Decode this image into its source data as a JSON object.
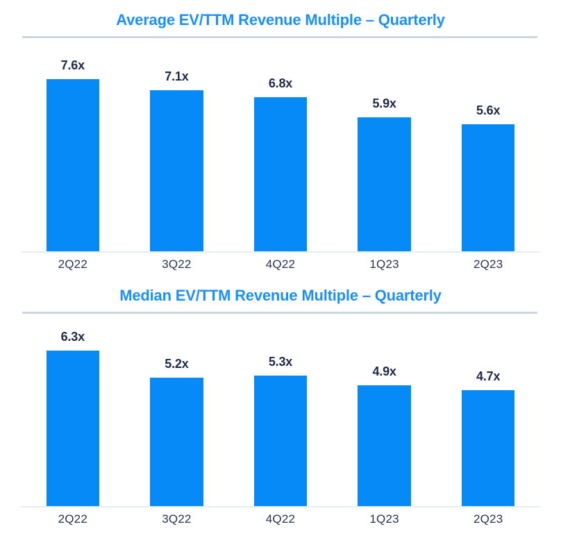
{
  "colors": {
    "bar": "#068af8",
    "title": "#1b90f8",
    "value_label": "#1e2a47",
    "axis_label": "#283252",
    "title_rule": "#ccd6e3",
    "axis_line": "#e8ecf3"
  },
  "chart_data": [
    {
      "type": "bar",
      "title": "Average EV/TTM Revenue Multiple – Quarterly",
      "categories": [
        "2Q22",
        "3Q22",
        "4Q22",
        "1Q23",
        "2Q23"
      ],
      "values": [
        7.6,
        7.1,
        6.8,
        5.9,
        5.6
      ],
      "value_labels": [
        "7.6x",
        "7.1x",
        "6.8x",
        "5.9x",
        "5.6x"
      ],
      "xlabel": "",
      "ylabel": "",
      "ylim": [
        0,
        9.4
      ],
      "grid": false,
      "legend": false,
      "data_labels_position": "above-bars"
    },
    {
      "type": "bar",
      "title": "Median EV/TTM Revenue Multiple – Quarterly",
      "categories": [
        "2Q22",
        "3Q22",
        "4Q22",
        "1Q23",
        "2Q23"
      ],
      "values": [
        6.3,
        5.2,
        5.3,
        4.9,
        4.7
      ],
      "value_labels": [
        "6.3x",
        "5.2x",
        "5.3x",
        "4.9x",
        "4.7x"
      ],
      "xlabel": "",
      "ylabel": "",
      "ylim": [
        0,
        7.8
      ],
      "grid": false,
      "legend": false,
      "data_labels_position": "above-bars"
    }
  ]
}
